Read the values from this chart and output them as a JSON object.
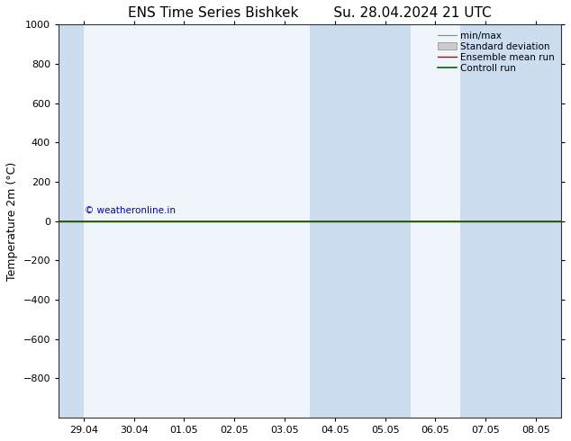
{
  "title_left": "ENS Time Series Bishkek",
  "title_right": "Su. 28.04.2024 21 UTC",
  "ylabel": "Temperature 2m (°C)",
  "ylim_top": -1000,
  "ylim_bottom": 1000,
  "yticks": [
    -800,
    -600,
    -400,
    -200,
    0,
    200,
    400,
    600,
    800,
    1000
  ],
  "xtick_labels": [
    "29.04",
    "30.04",
    "01.05",
    "02.05",
    "03.05",
    "04.05",
    "05.05",
    "06.05",
    "07.05",
    "08.05"
  ],
  "xtick_positions": [
    0,
    1,
    2,
    3,
    4,
    5,
    6,
    7,
    8,
    9
  ],
  "xlim": [
    -0.5,
    9.5
  ],
  "shaded_bands": [
    {
      "xmin": -0.5,
      "xmax": 0.0
    },
    {
      "xmin": 4.5,
      "xmax": 6.5
    },
    {
      "xmin": 7.5,
      "xmax": 9.5
    }
  ],
  "plot_bg_color": "#f0f5fb",
  "shaded_color": "#ccddf0",
  "green_line_color": "#006600",
  "red_line_color": "#cc0000",
  "green_line_y": 0,
  "red_line_y": 0,
  "copyright_text": "© weatheronline.in",
  "copyright_color": "#0000bb",
  "legend_items": [
    "min/max",
    "Standard deviation",
    "Ensemble mean run",
    "Controll run"
  ],
  "title_fontsize": 11,
  "label_fontsize": 9,
  "tick_fontsize": 8,
  "legend_fontsize": 7.5
}
